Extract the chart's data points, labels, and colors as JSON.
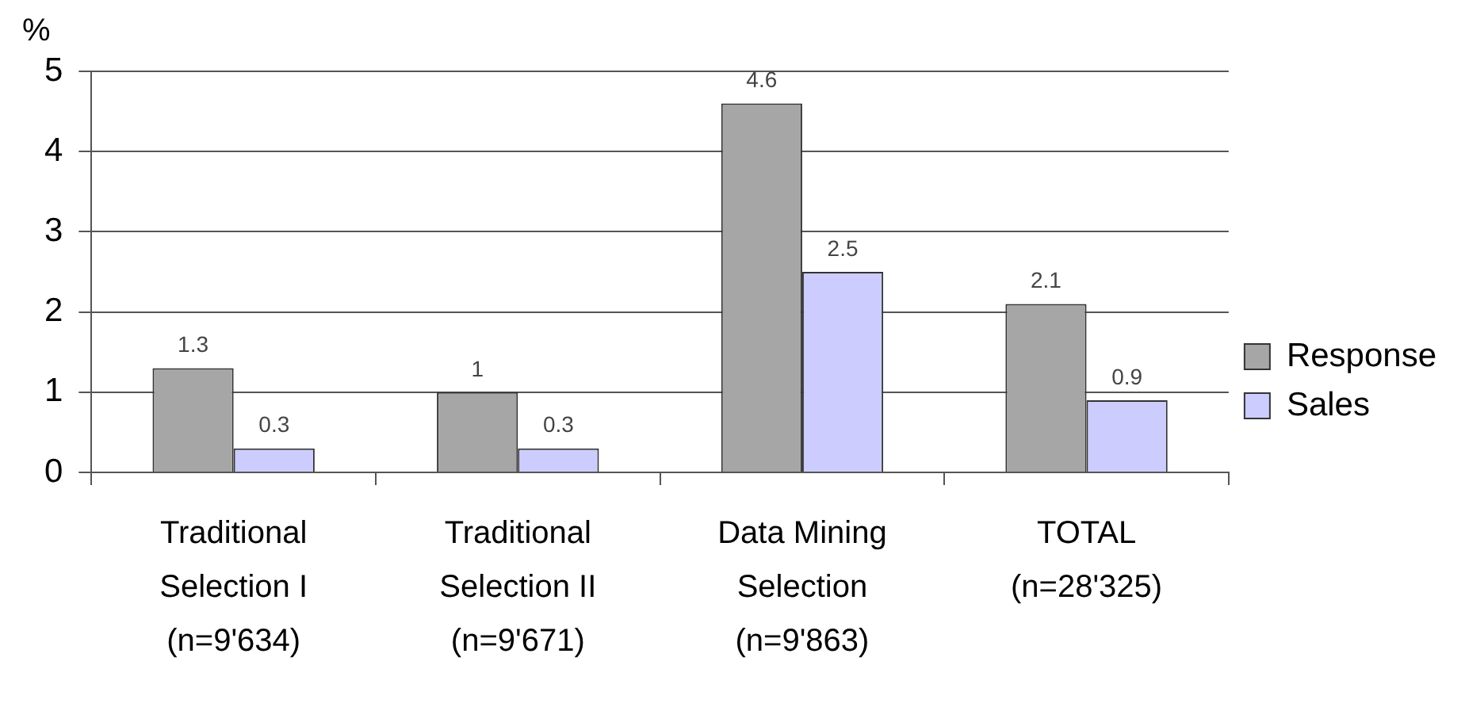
{
  "chart_data": {
    "type": "bar",
    "ylabel": "%",
    "categories": [
      "Traditional Selection I (n=9'634)",
      "Traditional Selection II (n=9'671)",
      "Data Mining Selection (n=9'863)",
      "TOTAL (n=28'325)"
    ],
    "series": [
      {
        "name": "Response",
        "color": "#a6a6a6",
        "values": [
          1.3,
          1,
          4.6,
          2.1
        ]
      },
      {
        "name": "Sales",
        "color": "#ccccff",
        "values": [
          0.3,
          0.3,
          2.5,
          0.9
        ]
      }
    ],
    "ylim": [
      0,
      5
    ],
    "yticks": [
      0,
      1,
      2,
      3,
      4,
      5
    ],
    "grid": "y",
    "legend": "right",
    "data_labels": true
  }
}
